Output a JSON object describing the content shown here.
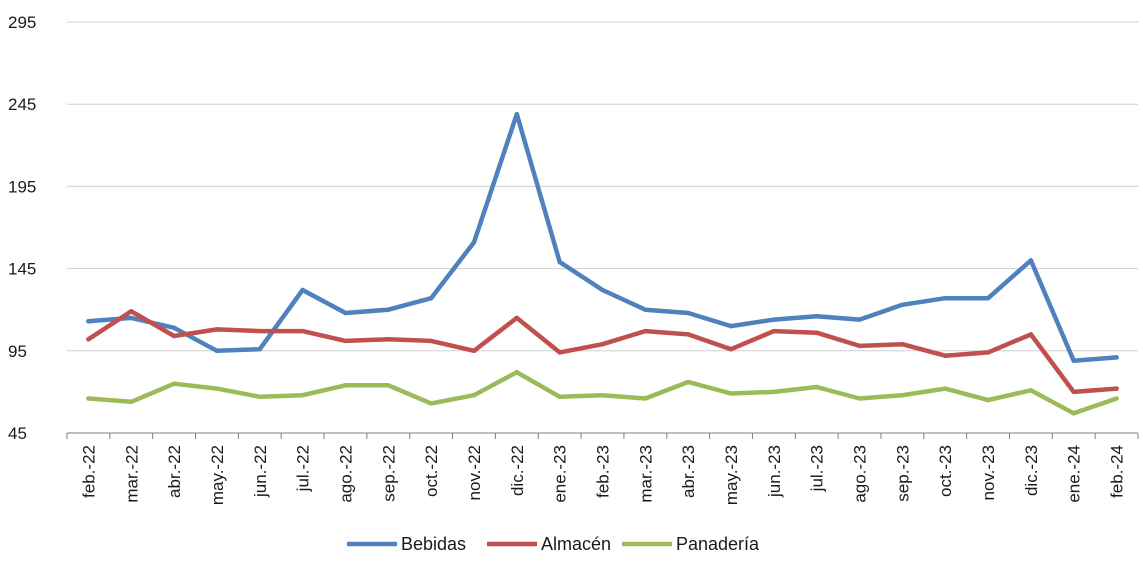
{
  "chart_data": {
    "type": "line",
    "title": "",
    "xlabel": "",
    "ylabel": "",
    "ylim": [
      45,
      295
    ],
    "yticks": [
      45,
      95,
      145,
      195,
      245,
      295
    ],
    "grid": true,
    "legend_position": "bottom",
    "categories": [
      "feb.-22",
      "mar.-22",
      "abr.-22",
      "may.-22",
      "jun.-22",
      "jul.-22",
      "ago.-22",
      "sep.-22",
      "oct.-22",
      "nov.-22",
      "dic.-22",
      "ene.-23",
      "feb.-23",
      "mar.-23",
      "abr.-23",
      "may.-23",
      "jun.-23",
      "jul.-23",
      "ago.-23",
      "sep.-23",
      "oct.-23",
      "nov.-23",
      "dic.-23",
      "ene.-24",
      "feb.-24"
    ],
    "series": [
      {
        "name": "Bebidas",
        "color": "#4f81bd",
        "values": [
          113,
          115,
          109,
          95,
          96,
          132,
          118,
          120,
          127,
          161,
          239,
          149,
          132,
          120,
          118,
          110,
          114,
          116,
          114,
          123,
          127,
          127,
          150,
          89,
          91
        ]
      },
      {
        "name": "Almacén",
        "color": "#c0504d",
        "values": [
          102,
          119,
          104,
          108,
          107,
          107,
          101,
          102,
          101,
          95,
          115,
          94,
          99,
          107,
          105,
          96,
          107,
          106,
          98,
          99,
          92,
          94,
          105,
          70,
          72
        ]
      },
      {
        "name": "Panadería",
        "color": "#9bbb59",
        "values": [
          66,
          64,
          75,
          72,
          67,
          68,
          74,
          74,
          63,
          68,
          82,
          67,
          68,
          66,
          76,
          69,
          70,
          73,
          66,
          68,
          72,
          65,
          71,
          57,
          66
        ]
      }
    ]
  }
}
